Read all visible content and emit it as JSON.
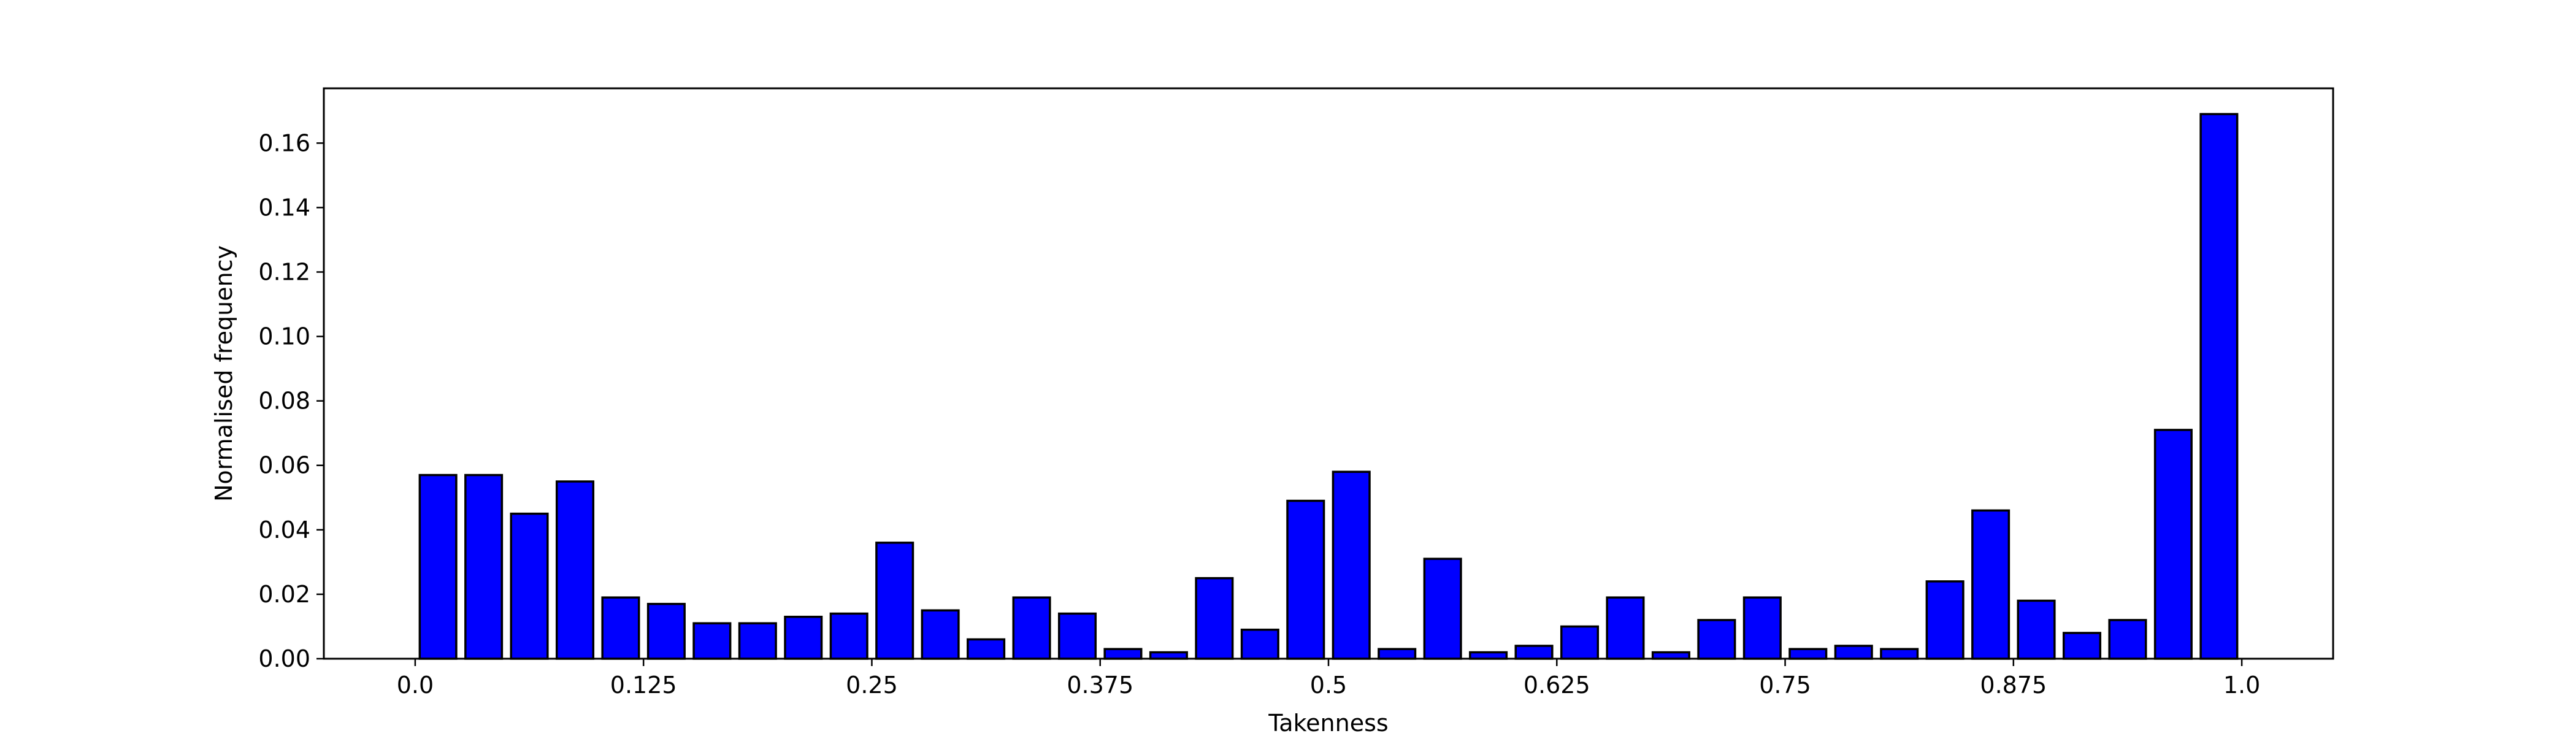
{
  "chart_data": {
    "type": "bar",
    "title": "",
    "xlabel": "Takenness",
    "ylabel": "Normalised frequency",
    "xlim": [
      -0.05,
      1.05
    ],
    "ylim": [
      0.0,
      0.177
    ],
    "bar_width": 0.02,
    "bar_color": "#0000ff",
    "edge_color": "#000000",
    "grid": false,
    "xticks": [
      0.0,
      0.125,
      0.25,
      0.375,
      0.5,
      0.625,
      0.75,
      0.875,
      1.0
    ],
    "xtick_labels": [
      "0.0",
      "0.125",
      "0.25",
      "0.375",
      "0.5",
      "0.625",
      "0.75",
      "0.875",
      "1.0"
    ],
    "yticks": [
      0.0,
      0.02,
      0.04,
      0.06,
      0.08,
      0.1,
      0.12,
      0.14,
      0.16
    ],
    "ytick_labels": [
      "0.00",
      "0.02",
      "0.04",
      "0.06",
      "0.08",
      "0.10",
      "0.12",
      "0.14",
      "0.16"
    ],
    "x": [
      0.0125,
      0.0375,
      0.0625,
      0.0875,
      0.1125,
      0.1375,
      0.1625,
      0.1875,
      0.2125,
      0.2375,
      0.2625,
      0.2875,
      0.3125,
      0.3375,
      0.3625,
      0.3875,
      0.4125,
      0.4375,
      0.4625,
      0.4875,
      0.5125,
      0.5375,
      0.5625,
      0.5875,
      0.6125,
      0.6375,
      0.6625,
      0.6875,
      0.7125,
      0.7375,
      0.7625,
      0.7875,
      0.8125,
      0.8375,
      0.8625,
      0.8875,
      0.9125,
      0.9375,
      0.9625,
      0.9875
    ],
    "values": [
      0.057,
      0.057,
      0.045,
      0.055,
      0.019,
      0.017,
      0.011,
      0.011,
      0.013,
      0.014,
      0.036,
      0.015,
      0.006,
      0.019,
      0.014,
      0.003,
      0.002,
      0.025,
      0.009,
      0.049,
      0.058,
      0.003,
      0.031,
      0.002,
      0.004,
      0.01,
      0.019,
      0.002,
      0.012,
      0.019,
      0.003,
      0.004,
      0.003,
      0.024,
      0.046,
      0.018,
      0.008,
      0.012,
      0.071,
      0.169
    ]
  }
}
